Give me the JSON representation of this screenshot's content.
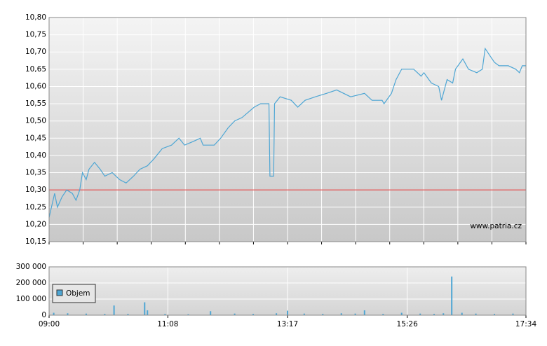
{
  "chart_data": [
    {
      "type": "line",
      "xlim": [
        "09:00",
        "17:34"
      ],
      "xgrid_count": 14,
      "ylim": [
        10.15,
        10.8
      ],
      "yticks": [
        {
          "value": 10.15,
          "label": "10,15"
        },
        {
          "value": 10.2,
          "label": "10,20"
        },
        {
          "value": 10.25,
          "label": "10,25"
        },
        {
          "value": 10.3,
          "label": "10,30"
        },
        {
          "value": 10.35,
          "label": "10,35"
        },
        {
          "value": 10.4,
          "label": "10,40"
        },
        {
          "value": 10.45,
          "label": "10,45"
        },
        {
          "value": 10.5,
          "label": "10,50"
        },
        {
          "value": 10.55,
          "label": "10,55"
        },
        {
          "value": 10.6,
          "label": "10,60"
        },
        {
          "value": 10.65,
          "label": "10,65"
        },
        {
          "value": 10.7,
          "label": "10,70"
        },
        {
          "value": 10.75,
          "label": "10,75"
        },
        {
          "value": 10.8,
          "label": "10,80"
        }
      ],
      "grid": true,
      "reference_line": {
        "value": 10.3,
        "color": "#e03030"
      },
      "watermark": "www.patria.cz",
      "color": "#4ea6d4",
      "x": [
        "09:00",
        "09:06",
        "09:09",
        "09:14",
        "09:19",
        "09:25",
        "09:29",
        "09:33",
        "09:36",
        "09:40",
        "09:43",
        "09:49",
        "09:55",
        "10:00",
        "10:08",
        "10:16",
        "10:23",
        "10:31",
        "10:38",
        "10:46",
        "10:53",
        "11:02",
        "11:12",
        "11:20",
        "11:26",
        "11:35",
        "11:43",
        "11:46",
        "11:58",
        "12:05",
        "12:13",
        "12:20",
        "12:28",
        "12:41",
        "12:48",
        "12:57",
        "12:58",
        "13:02",
        "13:03",
        "13:09",
        "13:21",
        "13:28",
        "13:36",
        "13:47",
        "13:59",
        "14:10",
        "14:25",
        "14:40",
        "14:48",
        "14:59",
        "15:01",
        "15:09",
        "15:14",
        "15:20",
        "15:33",
        "15:41",
        "15:44",
        "15:52",
        "16:00",
        "16:03",
        "16:09",
        "16:15",
        "16:18",
        "16:26",
        "16:32",
        "16:41",
        "16:47",
        "16:50",
        "16:55",
        "17:00",
        "17:05",
        "17:15",
        "17:23",
        "17:27",
        "17:30",
        "17:34"
      ],
      "values": [
        10.22,
        10.29,
        10.25,
        10.28,
        10.3,
        10.29,
        10.27,
        10.3,
        10.35,
        10.33,
        10.36,
        10.38,
        10.36,
        10.34,
        10.35,
        10.33,
        10.32,
        10.34,
        10.36,
        10.37,
        10.39,
        10.42,
        10.43,
        10.45,
        10.43,
        10.44,
        10.45,
        10.43,
        10.43,
        10.45,
        10.48,
        10.5,
        10.51,
        10.54,
        10.55,
        10.55,
        10.34,
        10.34,
        10.55,
        10.57,
        10.56,
        10.54,
        10.56,
        10.57,
        10.58,
        10.59,
        10.57,
        10.58,
        10.56,
        10.56,
        10.55,
        10.58,
        10.62,
        10.65,
        10.65,
        10.63,
        10.64,
        10.61,
        10.6,
        10.56,
        10.62,
        10.61,
        10.65,
        10.68,
        10.65,
        10.64,
        10.65,
        10.71,
        10.69,
        10.67,
        10.66,
        10.66,
        10.65,
        10.64,
        10.66,
        10.66
      ]
    },
    {
      "type": "bar",
      "xlim": [
        "09:00",
        "17:34"
      ],
      "xticks": [
        "09:00",
        "11:08",
        "13:17",
        "15:26",
        "17:34"
      ],
      "ylim": [
        0,
        300000
      ],
      "yticks": [
        {
          "value": 0,
          "label": "0"
        },
        {
          "value": 100000,
          "label": "100 000"
        },
        {
          "value": 200000,
          "label": "200 000"
        },
        {
          "value": 300000,
          "label": "300 000"
        }
      ],
      "grid": true,
      "series": [
        {
          "name": "Objem",
          "color": "#4ea6d4",
          "x": [
            "09:05",
            "09:20",
            "09:40",
            "10:00",
            "10:10",
            "10:25",
            "10:43",
            "10:46",
            "11:05",
            "11:30",
            "11:54",
            "12:20",
            "12:40",
            "13:05",
            "13:17",
            "13:35",
            "13:55",
            "14:15",
            "14:30",
            "14:40",
            "15:00",
            "15:20",
            "15:40",
            "15:55",
            "16:05",
            "16:14",
            "16:25",
            "16:40",
            "17:00",
            "17:20"
          ],
          "values": [
            15000,
            12000,
            10000,
            8000,
            60000,
            8000,
            80000,
            30000,
            8000,
            6000,
            25000,
            10000,
            8000,
            12000,
            28000,
            10000,
            8000,
            12000,
            10000,
            30000,
            8000,
            15000,
            10000,
            8000,
            12000,
            240000,
            15000,
            10000,
            8000,
            10000
          ]
        }
      ],
      "legend": "upper-left"
    }
  ]
}
